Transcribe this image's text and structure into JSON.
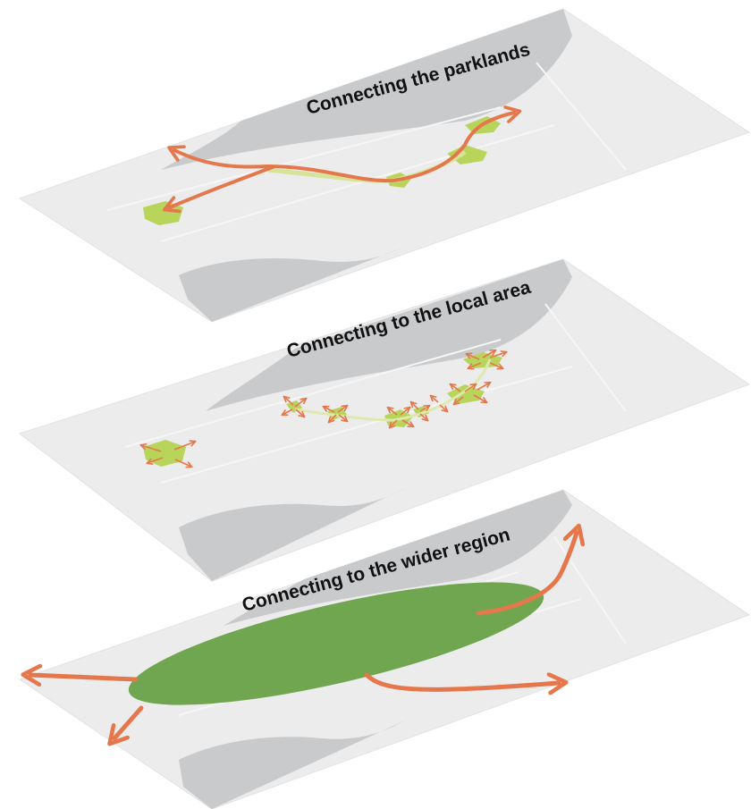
{
  "layers": [
    {
      "title": "Connecting the parklands"
    },
    {
      "title": "Connecting to the local area"
    },
    {
      "title": "Connecting to the wider region"
    }
  ],
  "colors": {
    "map_land": "#ececec",
    "map_water": "#c9cacc",
    "park_green": "#b9d45a",
    "region_green": "#6fa64f",
    "arrow": "#e4784c",
    "text": "#111111"
  }
}
